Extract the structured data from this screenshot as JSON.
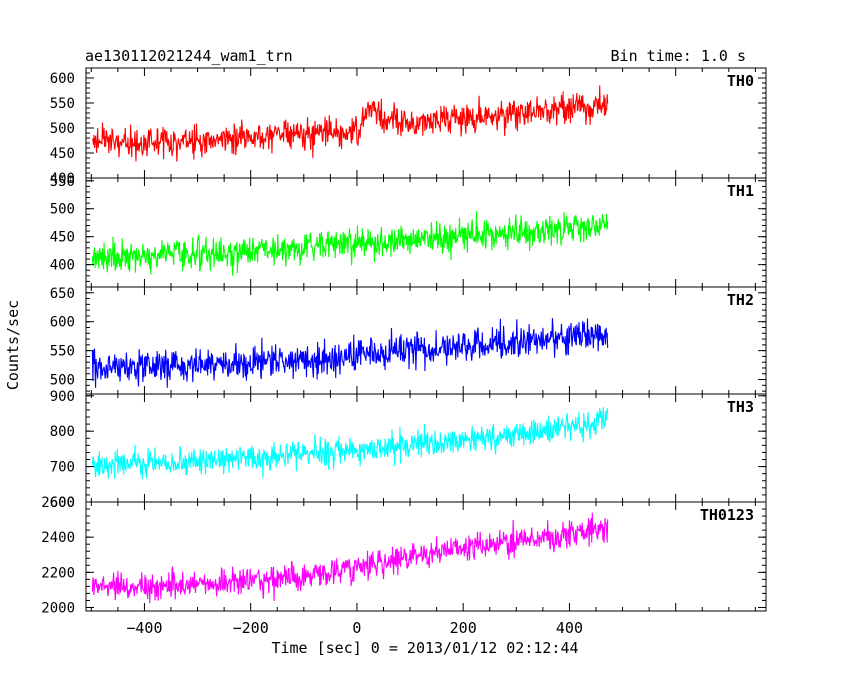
{
  "header": {
    "left_title": "ae130112021244_wam1_trn",
    "right_title": "Bin time: 1.0 s"
  },
  "chart_data": {
    "type": "line",
    "xlabel": "Time [sec] 0 = 2013/01/12 02:12:44",
    "ylabel": "Counts/sec",
    "xlim": [
      -510,
      770
    ],
    "x_ticks": [
      -400,
      -200,
      0,
      200,
      400
    ],
    "x_tick_labels": [
      "−400",
      "−200",
      "0",
      "200",
      "400"
    ],
    "x_data_range": [
      -498,
      472
    ],
    "bin_time_s": 1.0,
    "series": [
      {
        "name": "TH0",
        "color": "#ff0000",
        "ylim": [
          400,
          620
        ],
        "y_ticks": [
          400,
          450,
          500,
          550,
          600
        ],
        "y_tick_labels": [
          "400",
          "450",
          "500",
          "550",
          "600"
        ],
        "trend_x": [
          -498,
          -400,
          -250,
          -100,
          0,
          25,
          40,
          100,
          200,
          300,
          400,
          472
        ],
        "trend_y": [
          475,
          470,
          480,
          487,
          492,
          540,
          525,
          510,
          520,
          530,
          540,
          545
        ],
        "noise_sd": 22
      },
      {
        "name": "TH1",
        "color": "#00ff00",
        "ylim": [
          360,
          555
        ],
        "y_ticks": [
          400,
          450,
          500,
          550
        ],
        "y_tick_labels": [
          "400",
          "450",
          "500",
          "550"
        ],
        "trend_x": [
          -498,
          -300,
          -100,
          100,
          300,
          472
        ],
        "trend_y": [
          412,
          420,
          430,
          445,
          457,
          470
        ],
        "noise_sd": 20
      },
      {
        "name": "TH2",
        "color": "#0000ff",
        "ylim": [
          475,
          660
        ],
        "y_ticks": [
          500,
          550,
          600,
          650
        ],
        "y_tick_labels": [
          "500",
          "550",
          "600",
          "650"
        ],
        "trend_x": [
          -498,
          -300,
          -100,
          100,
          300,
          472
        ],
        "trend_y": [
          522,
          523,
          532,
          550,
          565,
          578
        ],
        "noise_sd": 20
      },
      {
        "name": "TH3",
        "color": "#00ffff",
        "ylim": [
          600,
          905
        ],
        "y_ticks": [
          600,
          700,
          800,
          900
        ],
        "y_tick_labels": [
          "600",
          "700",
          "800",
          "900"
        ],
        "trend_x": [
          -498,
          -300,
          -100,
          100,
          300,
          472
        ],
        "trend_y": [
          705,
          715,
          735,
          760,
          790,
          830
        ],
        "noise_sd": 28
      },
      {
        "name": "TH0123",
        "color": "#ff00ff",
        "ylim": [
          1980,
          2600
        ],
        "y_ticks": [
          2000,
          2200,
          2400,
          2600
        ],
        "y_tick_labels": [
          "2000",
          "2200",
          "2400",
          "2600"
        ],
        "trend_x": [
          -498,
          -300,
          -100,
          0,
          100,
          300,
          472
        ],
        "trend_y": [
          2110,
          2130,
          2175,
          2235,
          2290,
          2380,
          2450
        ],
        "noise_sd": 55
      }
    ]
  }
}
